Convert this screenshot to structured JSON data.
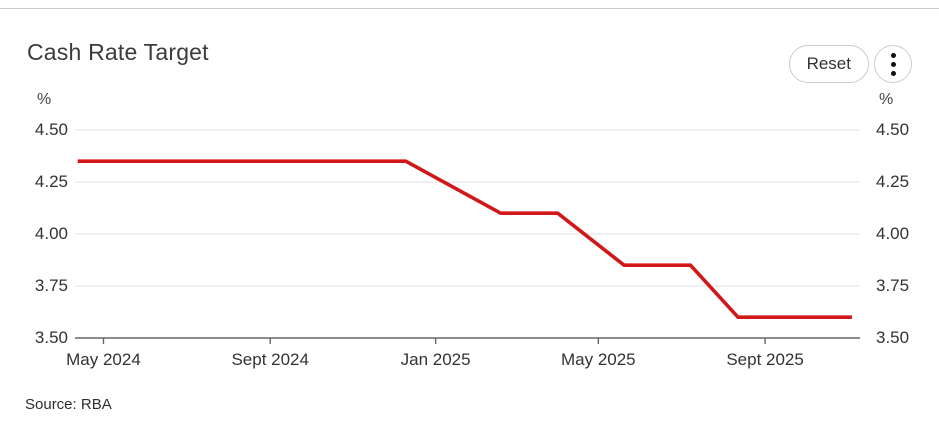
{
  "header": {
    "title": "Cash Rate Target",
    "reset_label": "Reset",
    "menu_icon": "kebab-menu-icon"
  },
  "chart_data": {
    "type": "line",
    "title": "Cash Rate Target",
    "unit_label": "%",
    "xlabel": "",
    "ylabel": "%",
    "ylim": [
      3.5,
      4.5
    ],
    "xlim": [
      "2024-04-10",
      "2025-11-10"
    ],
    "grid": true,
    "legend": "none",
    "y_ticks": [
      4.5,
      4.25,
      4.0,
      3.75,
      3.5
    ],
    "y_tick_labels": [
      "4.50",
      "4.25",
      "4.00",
      "3.75",
      "3.50"
    ],
    "x_ticks": [
      "2024-05-01",
      "2024-09-01",
      "2025-01-01",
      "2025-05-01",
      "2025-09-01"
    ],
    "x_tick_labels": [
      "May 2024",
      "Sept 2024",
      "Jan 2025",
      "May 2025",
      "Sept 2025"
    ],
    "line_color": "#d11717",
    "grid_color": "#e6e6e6",
    "axis_color": "#666666",
    "series": [
      {
        "name": "Cash Rate Target",
        "color": "#d11717",
        "points": [
          {
            "date": "2024-04-12",
            "value": 4.35
          },
          {
            "date": "2024-12-10",
            "value": 4.35
          },
          {
            "date": "2025-02-18",
            "value": 4.1
          },
          {
            "date": "2025-04-01",
            "value": 4.1
          },
          {
            "date": "2025-05-20",
            "value": 3.85
          },
          {
            "date": "2025-07-08",
            "value": 3.85
          },
          {
            "date": "2025-08-12",
            "value": 3.6
          },
          {
            "date": "2025-11-04",
            "value": 3.6
          }
        ]
      }
    ]
  },
  "footer": {
    "source_label": "Source: RBA"
  }
}
